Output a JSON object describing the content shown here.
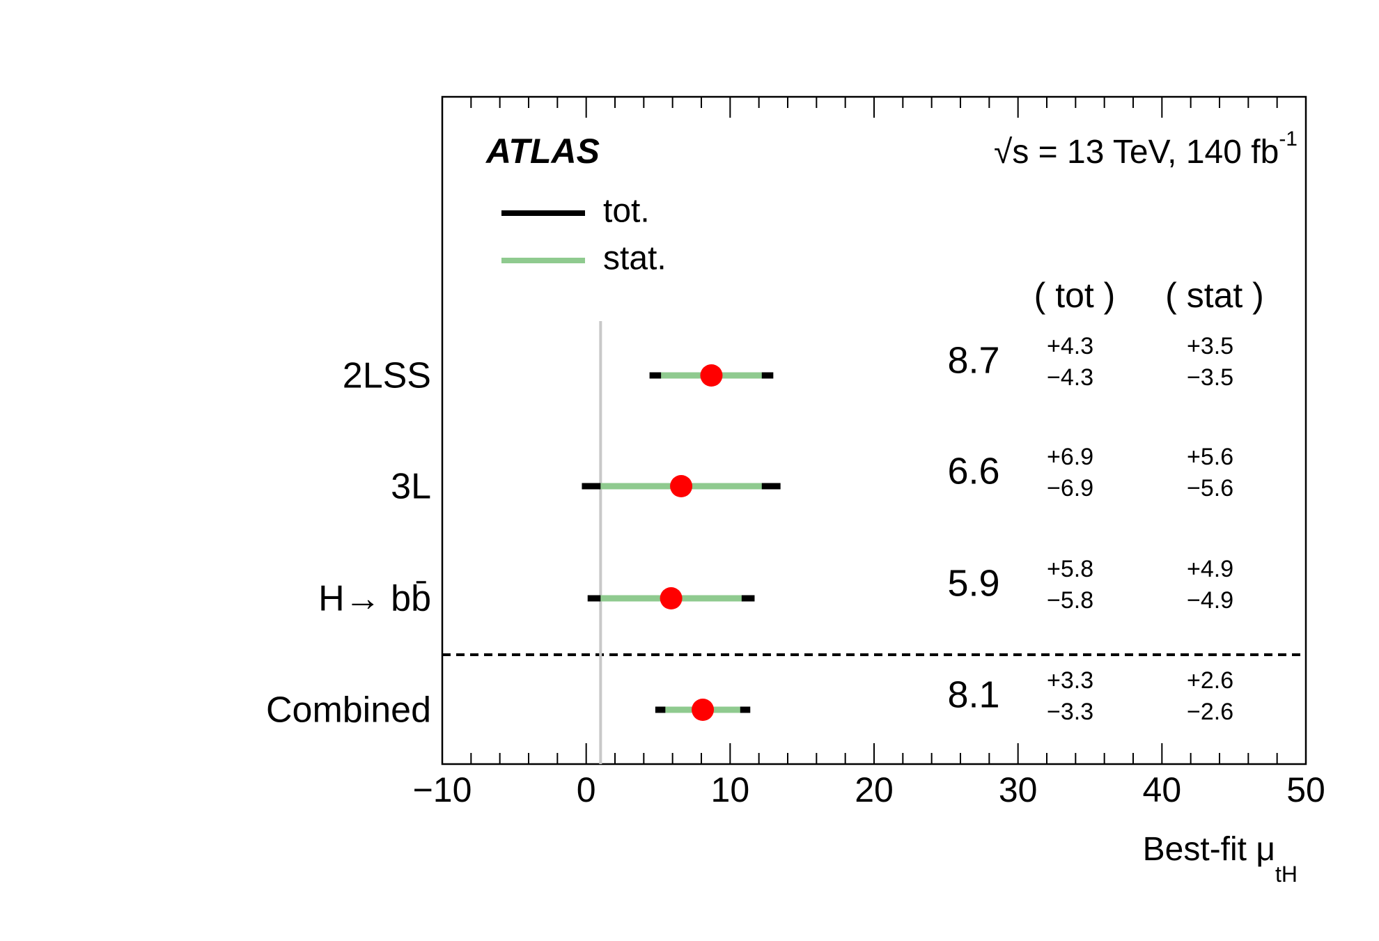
{
  "chart_data": {
    "type": "forest",
    "experiment": "ATLAS",
    "energy_label": "√s = 13 TeV, 140 fb",
    "energy_label_sup": "-1",
    "column_headers": [
      "( tot )",
      "( stat )"
    ],
    "categories": [
      "2LSS",
      "3L",
      "H→ bb̄",
      "Combined"
    ],
    "values": [
      8.7,
      6.6,
      5.9,
      8.1
    ],
    "series": [
      {
        "name": "tot.",
        "color": "#000000",
        "errors": [
          4.3,
          6.9,
          5.8,
          3.3
        ],
        "plus_labels": [
          "+4.3",
          "+6.9",
          "+5.8",
          "+3.3"
        ],
        "minus_labels": [
          "−4.3",
          "−6.9",
          "−5.8",
          "−3.3"
        ]
      },
      {
        "name": "stat.",
        "color": "#8fca8f",
        "errors": [
          3.5,
          5.6,
          4.9,
          2.6
        ],
        "plus_labels": [
          "+3.5",
          "+5.6",
          "+4.9",
          "+2.6"
        ],
        "minus_labels": [
          "−3.5",
          "−5.6",
          "−4.9",
          "−2.6"
        ]
      }
    ],
    "marker_color": "#ff0000",
    "reference_line": 1,
    "xlabel": "Best-fit μ",
    "xlabel_sub": "tH",
    "xlim": [
      -10,
      50
    ],
    "xticks": [
      {
        "value": -10,
        "label": "−10"
      },
      0,
      10,
      20,
      30,
      40,
      50
    ],
    "xminorticks": [
      -8,
      -6,
      -4,
      -2,
      2,
      4,
      6,
      8,
      12,
      14,
      16,
      18,
      22,
      24,
      26,
      28,
      32,
      34,
      36,
      38,
      42,
      44,
      46,
      48
    ]
  }
}
